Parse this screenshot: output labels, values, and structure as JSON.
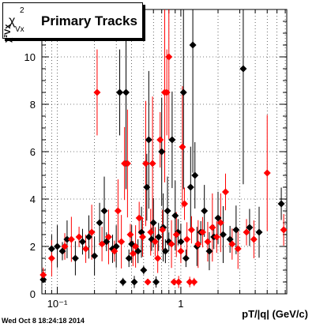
{
  "title": {
    "symbol": "χ",
    "symbol_sup": "2",
    "symbol_sub": "Vx",
    "text": "Primary Tracks"
  },
  "footer": {
    "timestamp": "Wed Oct  8 18:24:18 2014"
  },
  "chart_data": {
    "type": "scatter",
    "xlabel": "pT/|q| (GeV/c)",
    "ylabel": "χ²Vx",
    "x_scale": "log",
    "xlim": [
      0.075,
      7.2
    ],
    "ylim": [
      0,
      12
    ],
    "xticks_labeled": [
      {
        "value": 0.1,
        "label": "10⁻¹"
      },
      {
        "value": 1,
        "label": "1"
      }
    ],
    "yticks": [
      0,
      2,
      4,
      6,
      8,
      10
    ],
    "grid": true,
    "colors": {
      "series_black": "#000000",
      "series_red": "#ff0000"
    },
    "series": [
      {
        "color": "#000000",
        "points": [
          {
            "x": 0.077,
            "y": 0.6
          },
          {
            "x": 0.09,
            "y": 1.9
          },
          {
            "x": 0.1,
            "y": 2.0
          },
          {
            "x": 0.11,
            "y": 1.8
          },
          {
            "x": 0.12,
            "y": 2.3
          },
          {
            "x": 0.14,
            "y": 1.5
          },
          {
            "x": 0.16,
            "y": 2.2
          },
          {
            "x": 0.18,
            "y": 2.4
          },
          {
            "x": 0.2,
            "y": 1.6
          },
          {
            "x": 0.22,
            "y": 3.0
          },
          {
            "x": 0.24,
            "y": 3.5
          },
          {
            "x": 0.25,
            "y": 2.2
          },
          {
            "x": 0.28,
            "y": 1.9
          },
          {
            "x": 0.3,
            "y": 2.0
          },
          {
            "x": 0.32,
            "y": 8.5
          },
          {
            "x": 0.34,
            "y": 0.5
          },
          {
            "x": 0.36,
            "y": 8.5
          },
          {
            "x": 0.38,
            "y": 1.5
          },
          {
            "x": 0.4,
            "y": 2.1
          },
          {
            "x": 0.42,
            "y": 0.5
          },
          {
            "x": 0.45,
            "y": 1.8
          },
          {
            "x": 0.48,
            "y": 2.6
          },
          {
            "x": 0.5,
            "y": 1.0
          },
          {
            "x": 0.53,
            "y": 4.5
          },
          {
            "x": 0.55,
            "y": 6.5
          },
          {
            "x": 0.58,
            "y": 2.3
          },
          {
            "x": 0.6,
            "y": 3.0
          },
          {
            "x": 0.63,
            "y": 0.5
          },
          {
            "x": 0.66,
            "y": 2.4
          },
          {
            "x": 0.7,
            "y": 6.0
          },
          {
            "x": 0.72,
            "y": 2.8
          },
          {
            "x": 0.75,
            "y": 1.8
          },
          {
            "x": 0.78,
            "y": 3.5
          },
          {
            "x": 0.8,
            "y": 2.2
          },
          {
            "x": 0.85,
            "y": 6.5
          },
          {
            "x": 0.9,
            "y": 3.3
          },
          {
            "x": 0.95,
            "y": 2.6
          },
          {
            "x": 1.0,
            "y": 2.2
          },
          {
            "x": 1.05,
            "y": 8.5
          },
          {
            "x": 1.1,
            "y": 1.5
          },
          {
            "x": 1.2,
            "y": 4.5
          },
          {
            "x": 1.25,
            "y": 10.5
          },
          {
            "x": 1.3,
            "y": 5.0
          },
          {
            "x": 1.35,
            "y": 2.0
          },
          {
            "x": 1.45,
            "y": 2.6
          },
          {
            "x": 1.55,
            "y": 3.5
          },
          {
            "x": 1.7,
            "y": 1.8
          },
          {
            "x": 1.85,
            "y": 2.4
          },
          {
            "x": 2.0,
            "y": 3.2
          },
          {
            "x": 2.2,
            "y": 2.5
          },
          {
            "x": 2.5,
            "y": 2.3
          },
          {
            "x": 2.8,
            "y": 2.7
          },
          {
            "x": 3.2,
            "y": 9.5
          },
          {
            "x": 3.6,
            "y": 2.8
          },
          {
            "x": 4.3,
            "y": 2.6
          },
          {
            "x": 6.5,
            "y": 3.8
          }
        ]
      },
      {
        "color": "#ff0000",
        "points": [
          {
            "x": 0.077,
            "y": 0.8
          },
          {
            "x": 0.09,
            "y": 1.5
          },
          {
            "x": 0.115,
            "y": 2.0
          },
          {
            "x": 0.13,
            "y": 2.3
          },
          {
            "x": 0.15,
            "y": 2.4
          },
          {
            "x": 0.17,
            "y": 1.9
          },
          {
            "x": 0.19,
            "y": 2.6
          },
          {
            "x": 0.21,
            "y": 8.5
          },
          {
            "x": 0.23,
            "y": 2.1
          },
          {
            "x": 0.26,
            "y": 2.4
          },
          {
            "x": 0.29,
            "y": 1.8
          },
          {
            "x": 0.31,
            "y": 3.5
          },
          {
            "x": 0.33,
            "y": 2.2
          },
          {
            "x": 0.35,
            "y": 5.5
          },
          {
            "x": 0.37,
            "y": 5.5
          },
          {
            "x": 0.39,
            "y": 2.5
          },
          {
            "x": 0.41,
            "y": 1.7
          },
          {
            "x": 0.43,
            "y": 2.0
          },
          {
            "x": 0.46,
            "y": 3.2
          },
          {
            "x": 0.49,
            "y": 2.4
          },
          {
            "x": 0.52,
            "y": 5.5
          },
          {
            "x": 0.54,
            "y": 0.5
          },
          {
            "x": 0.57,
            "y": 2.6
          },
          {
            "x": 0.59,
            "y": 5.5
          },
          {
            "x": 0.62,
            "y": 2.2
          },
          {
            "x": 0.65,
            "y": 1.5
          },
          {
            "x": 0.68,
            "y": 6.5
          },
          {
            "x": 0.71,
            "y": 2.7
          },
          {
            "x": 0.74,
            "y": 8.5
          },
          {
            "x": 0.77,
            "y": 8.5
          },
          {
            "x": 0.8,
            "y": 10.0
          },
          {
            "x": 0.84,
            "y": 2.1
          },
          {
            "x": 0.88,
            "y": 0.5
          },
          {
            "x": 0.92,
            "y": 2.5
          },
          {
            "x": 0.96,
            "y": 0.5
          },
          {
            "x": 1.0,
            "y": 1.8
          },
          {
            "x": 1.03,
            "y": 6.2
          },
          {
            "x": 1.07,
            "y": 3.8
          },
          {
            "x": 1.12,
            "y": 2.3
          },
          {
            "x": 1.18,
            "y": 0.5
          },
          {
            "x": 1.22,
            "y": 2.7
          },
          {
            "x": 1.28,
            "y": 0.5
          },
          {
            "x": 1.38,
            "y": 2.1
          },
          {
            "x": 1.5,
            "y": 2.6
          },
          {
            "x": 1.65,
            "y": 2.2
          },
          {
            "x": 1.8,
            "y": 2.8
          },
          {
            "x": 1.95,
            "y": 2.4
          },
          {
            "x": 2.1,
            "y": 3.0
          },
          {
            "x": 2.3,
            "y": 4.3
          },
          {
            "x": 2.6,
            "y": 2.1
          },
          {
            "x": 2.9,
            "y": 1.9
          },
          {
            "x": 3.4,
            "y": 2.6
          },
          {
            "x": 3.9,
            "y": 2.3
          },
          {
            "x": 5.0,
            "y": 5.1
          },
          {
            "x": 6.8,
            "y": 2.7
          }
        ]
      }
    ]
  }
}
